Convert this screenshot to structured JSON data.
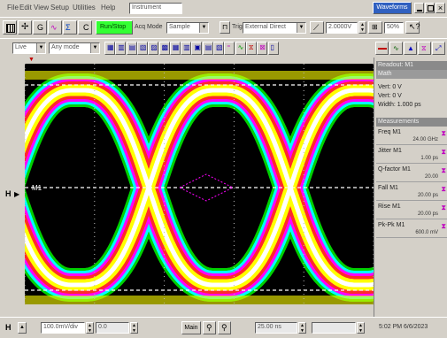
{
  "menu": {
    "items": [
      "File",
      "Edit",
      "View",
      "Setup",
      "Utilities",
      "Help"
    ],
    "mode_tab": "Instrument"
  },
  "title_right": {
    "label": "Waveforms"
  },
  "toolbar1": {
    "run_stop_label": "Run/Stop",
    "acq_mode_label": "Acq Mode",
    "acq_mode_value": "Sample",
    "trigger_label": "Trig",
    "trigger_source": "External Direct",
    "trigger_level": "2.0000V",
    "percent": "50%"
  },
  "toolbar2": {
    "waveform_select": "Live",
    "display_mode": "Any mode"
  },
  "sidebar": {
    "readout_header": "Readout: M1",
    "readout_sub": "Math",
    "readout_lines": [
      "Vert: 0 V",
      "Vert: 0 V",
      "Width: 1.000 ps"
    ],
    "meas_header": "Measurements",
    "measurements": [
      {
        "name": "Freq M1",
        "value": "24.00 GHz"
      },
      {
        "name": "Jitter M1",
        "value": "1.00 ps"
      },
      {
        "name": "Q-factor M1",
        "value": "20.00"
      },
      {
        "name": "Fall M1",
        "value": "20.00 ps"
      },
      {
        "name": "Rise M1",
        "value": "20.00 ps"
      },
      {
        "name": "Pk-Pk M1",
        "value": "600.0 mV"
      }
    ]
  },
  "scope": {
    "marker_label": "M1",
    "level_marker": "H"
  },
  "statusbar": {
    "channel": "H",
    "scale_value": "100.0mV/div",
    "offset_value": "0.0",
    "main_label": "Main",
    "position_value": "25.00 ns",
    "right_text": "5:02 PM 6/6/2023"
  },
  "colors": {
    "background": "#000000",
    "hot": "#ffff00",
    "warm": "#ff2a2a",
    "mid": "#ff00ff",
    "cool": "#00ffff",
    "cold": "#00d000",
    "toolbar": "#d4d0c8",
    "run_button": "#33ff33"
  }
}
